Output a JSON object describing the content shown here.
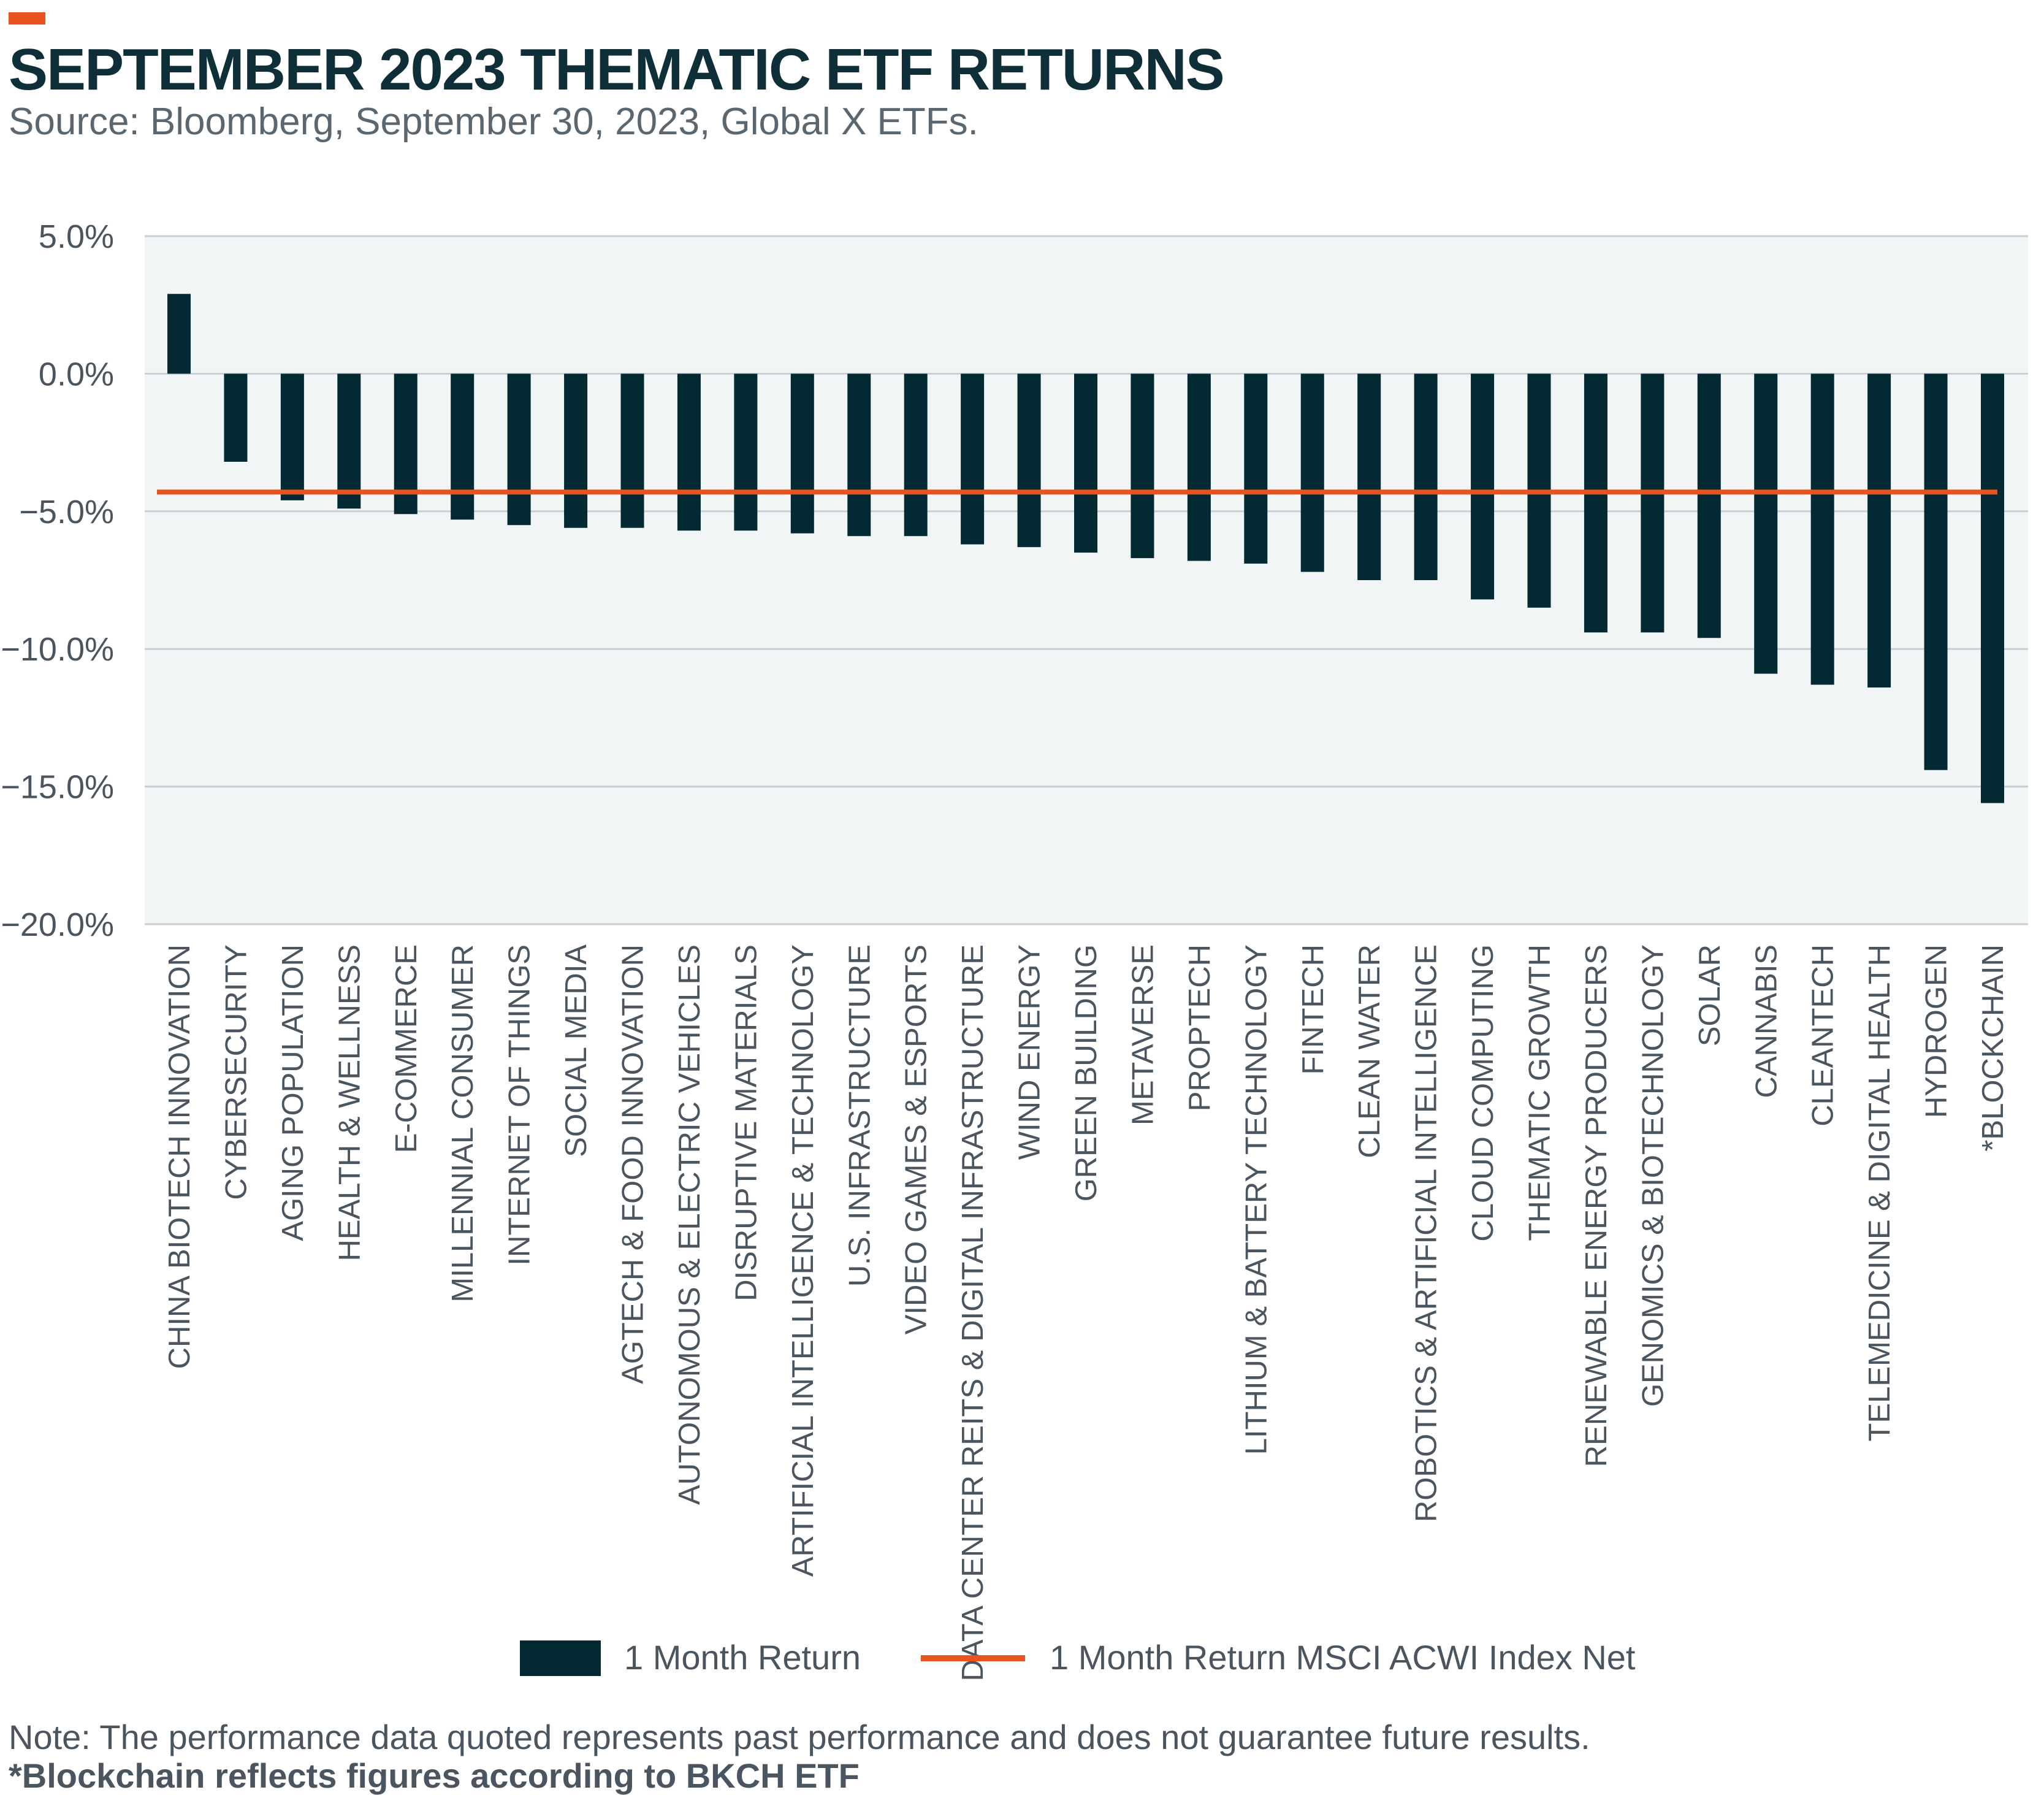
{
  "header": {
    "title": "SEPTEMBER 2023 THEMATIC ETF RETURNS",
    "subtitle": "Source: Bloomberg, September 30, 2023, Global X ETFs."
  },
  "colors": {
    "bar": "#032a33",
    "benchmark_line": "#e8531f",
    "plot_background": "#f1f5f6",
    "gridline": "#c9d0d4",
    "tick_text": "#4a5560",
    "accent": "#e8531f"
  },
  "chart_data": {
    "type": "bar",
    "title": "SEPTEMBER 2023 THEMATIC ETF RETURNS",
    "ylim": [
      -20,
      5
    ],
    "yticks": [
      5,
      0,
      -5,
      -10,
      -15,
      -20
    ],
    "ytick_labels": [
      "5.0%",
      "0.0%",
      "−5.0%",
      "−10.0%",
      "−15.0%",
      "−20.0%"
    ],
    "grid": true,
    "categories": [
      "CHINA BIOTECH INNOVATION",
      "CYBERSECURITY",
      "AGING POPULATION",
      "HEALTH & WELLNESS",
      "E-COMMERCE",
      "MILLENNIAL CONSUMER",
      "INTERNET OF THINGS",
      "SOCIAL MEDIA",
      "AGTECH & FOOD INNOVATION",
      "AUTONOMOUS & ELECTRIC VEHICLES",
      "DISRUPTIVE MATERIALS",
      "ARTIFICIAL INTELLIGENCE & TECHNOLOGY",
      "U.S. INFRASTRUCTURE",
      "VIDEO GAMES & ESPORTS",
      "DATA CENTER REITS & DIGITAL INFRASTRUCTURE",
      "WIND ENERGY",
      "GREEN BUILDING",
      "METAVERSE",
      "PROPTECH",
      "LITHIUM & BATTERY TECHNOLOGY",
      "FINTECH",
      "CLEAN WATER",
      "ROBOTICS & ARTIFICIAL INTELLIGENCE",
      "CLOUD COMPUTING",
      "THEMATIC GROWTH",
      "RENEWABLE ENERGY PRODUCERS",
      "GENOMICS & BIOTECHNOLOGY",
      "SOLAR",
      "CANNABIS",
      "CLEANTECH",
      "TELEMEDICINE & DIGITAL HEALTH",
      "HYDROGEN",
      "*BLOCKCHAIN"
    ],
    "series": [
      {
        "name": "1 Month Return",
        "values": [
          2.9,
          -3.2,
          -4.6,
          -4.9,
          -5.1,
          -5.3,
          -5.5,
          -5.6,
          -5.6,
          -5.7,
          -5.7,
          -5.8,
          -5.9,
          -5.9,
          -6.2,
          -6.3,
          -6.5,
          -6.7,
          -6.8,
          -6.9,
          -7.2,
          -7.5,
          -7.5,
          -8.2,
          -8.5,
          -9.4,
          -9.4,
          -9.6,
          -10.9,
          -11.3,
          -11.4,
          -14.4,
          -15.6
        ]
      }
    ],
    "benchmark": {
      "name": "1 Month Return MSCI ACWI Index Net",
      "value": -4.3
    }
  },
  "legend": {
    "bar_label": "1 Month Return",
    "line_label": "1 Month Return MSCI ACWI Index Net"
  },
  "notes": {
    "note": "Note: The performance data quoted represents past performance and does not guarantee future results.",
    "footnote": "*Blockchain reflects figures according to BKCH ETF"
  }
}
